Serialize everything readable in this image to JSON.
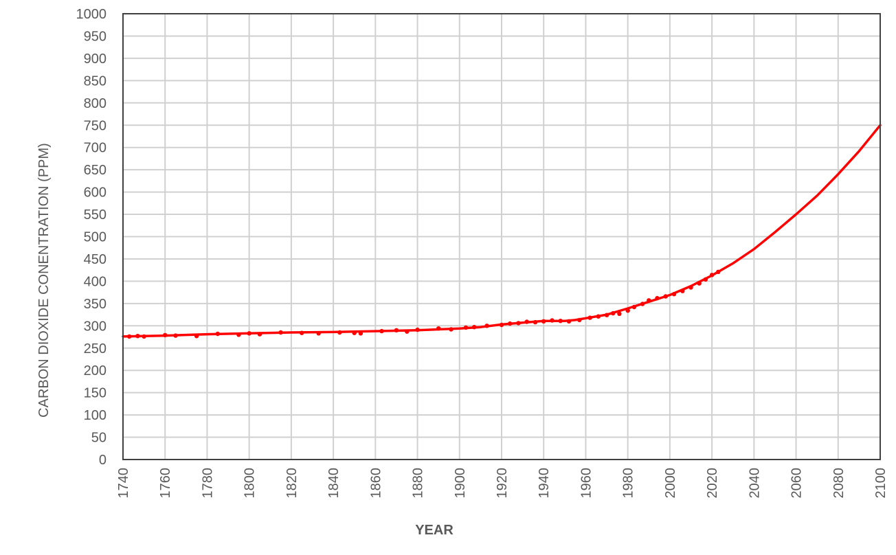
{
  "chart_data": {
    "type": "line",
    "title": "",
    "xlabel": "YEAR",
    "ylabel": "CARBON DIOXIDE CONENTRATION (PPM)",
    "xlim": [
      1740,
      2100
    ],
    "ylim": [
      0,
      1000
    ],
    "x_ticks": [
      "1740",
      "1760",
      "1780",
      "1800",
      "1820",
      "1840",
      "1860",
      "1880",
      "1900",
      "1920",
      "1940",
      "1960",
      "1980",
      "2000",
      "2020",
      "2040",
      "2060",
      "2080",
      "2100"
    ],
    "y_ticks": [
      "0",
      "50",
      "100",
      "150",
      "200",
      "250",
      "300",
      "350",
      "400",
      "450",
      "500",
      "550",
      "600",
      "650",
      "700",
      "750",
      "800",
      "850",
      "900",
      "950",
      "1000"
    ],
    "grid": true,
    "legend": "none",
    "series": [
      {
        "color": "#ff0000",
        "style": "line",
        "x": [
          1740,
          1760,
          1780,
          1800,
          1820,
          1840,
          1860,
          1880,
          1900,
          1910,
          1920,
          1930,
          1940,
          1950,
          1955,
          1960,
          1970,
          1980,
          1990,
          2000,
          2010,
          2020,
          2030,
          2040,
          2050,
          2060,
          2070,
          2080,
          2090,
          2100
        ],
        "y": [
          276,
          278,
          281,
          283,
          285,
          286,
          288,
          290,
          294,
          297,
          303,
          307,
          311,
          311,
          313,
          317,
          325,
          339,
          354,
          369,
          389,
          413,
          440,
          472,
          510,
          550,
          592,
          640,
          692,
          750
        ]
      },
      {
        "color": "#ff0000",
        "style": "markers",
        "x": [
          1743,
          1747,
          1750,
          1760,
          1765,
          1775,
          1785,
          1795,
          1800,
          1805,
          1815,
          1825,
          1833,
          1843,
          1850,
          1853,
          1863,
          1870,
          1875,
          1880,
          1890,
          1896,
          1903,
          1907,
          1913,
          1920,
          1924,
          1928,
          1932,
          1936,
          1940,
          1944,
          1948,
          1952,
          1957,
          1962,
          1966,
          1970,
          1973,
          1976,
          1980,
          1983,
          1987,
          1990,
          1994,
          1998,
          2002,
          2006,
          2010,
          2014,
          2017,
          2020,
          2023
        ],
        "y": [
          276,
          277,
          276,
          279,
          278,
          277,
          282,
          280,
          283,
          281,
          285,
          284,
          283,
          285,
          284,
          283,
          288,
          290,
          287,
          291,
          294,
          292,
          296,
          297,
          300,
          302,
          305,
          306,
          309,
          308,
          310,
          312,
          311,
          310,
          313,
          318,
          321,
          324,
          328,
          327,
          334,
          342,
          349,
          357,
          362,
          366,
          371,
          378,
          386,
          395,
          404,
          414,
          421
        ]
      }
    ]
  }
}
